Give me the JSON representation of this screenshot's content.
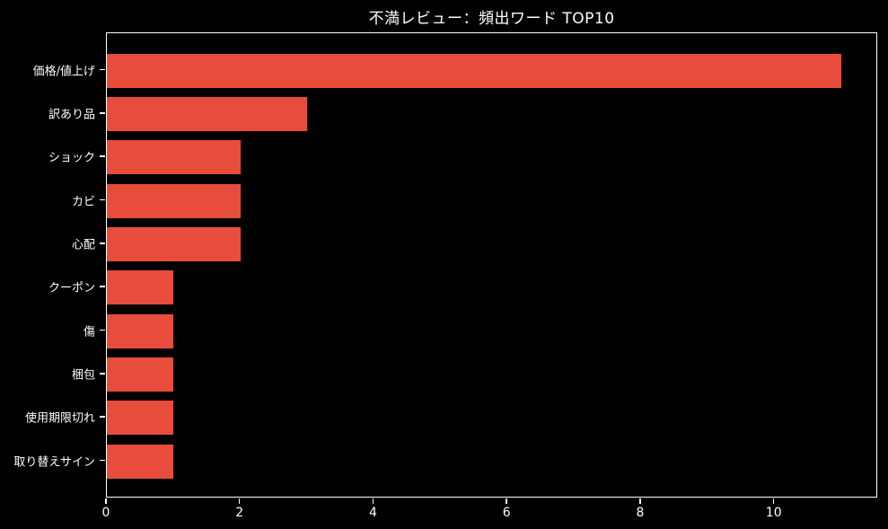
{
  "chart_data": {
    "type": "bar",
    "orientation": "horizontal",
    "title": "不満レビュー：頻出ワード TOP10",
    "xlabel": "",
    "ylabel": "",
    "categories": [
      "価格/値上げ",
      "訳あり品",
      "ショック",
      "カビ",
      "心配",
      "クーポン",
      "傷",
      "梱包",
      "使用期限切れ",
      "取り替えサイン"
    ],
    "values": [
      11,
      3,
      2,
      2,
      2,
      1,
      1,
      1,
      1,
      1
    ],
    "xlim": [
      0,
      11.55
    ],
    "xticks": [
      0,
      2,
      4,
      6,
      8,
      10
    ],
    "grid": false,
    "legend": null,
    "colors": {
      "bar": "#e74c3c",
      "background": "#000000",
      "text": "#ffffff",
      "axis": "#ffffff"
    }
  }
}
